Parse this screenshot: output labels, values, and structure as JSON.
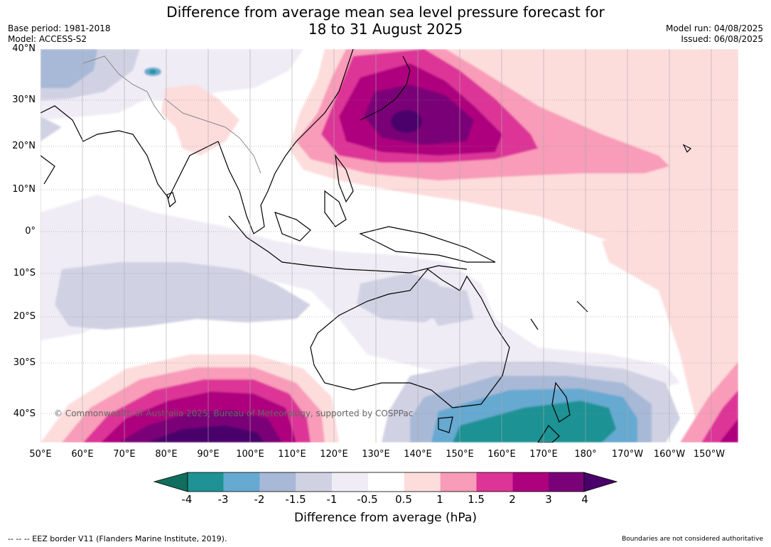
{
  "title": {
    "line1": "Difference from average mean sea level pressure forecast for",
    "line2": "18 to 31 August 2025"
  },
  "meta": {
    "base_period": "Base period: 1981-2018",
    "model": "Model: ACCESS-S2",
    "model_run": "Model run: 04/08/2025",
    "issued": "Issued: 06/08/2025"
  },
  "axes": {
    "lat_labels": [
      "40°N",
      "30°N",
      "20°N",
      "10°N",
      "0°",
      "10°S",
      "20°S",
      "30°S",
      "40°S"
    ],
    "lon_labels": [
      "50°E",
      "60°E",
      "70°E",
      "80°E",
      "90°E",
      "100°E",
      "110°E",
      "120°E",
      "130°E",
      "140°E",
      "150°E",
      "160°E",
      "170°E",
      "180°",
      "170°W",
      "160°W",
      "150°W"
    ]
  },
  "copyright": "© Commonwealth of Australia 2025, Bureau of Meteorology, supported by COSPPac",
  "colorbar": {
    "title": "Difference from average (hPa)",
    "ticks": [
      "-4",
      "-3",
      "-2",
      "-1.5",
      "-1",
      "-0.5",
      "0.5",
      "1",
      "1.5",
      "2",
      "3",
      "4"
    ],
    "colors": [
      "#0f6e5e",
      "#1e9294",
      "#66a9d1",
      "#a7b9d6",
      "#d1d1e4",
      "#efecf5",
      "#ffffff",
      "#fddcdc",
      "#f89cb9",
      "#dd3497",
      "#ae017e",
      "#7a0177",
      "#49006a"
    ]
  },
  "footer": {
    "eez": "--  --  -- EEZ border V11 (Flanders Marine Institute, 2019).",
    "authority": "Boundaries are not considered authoritative"
  }
}
